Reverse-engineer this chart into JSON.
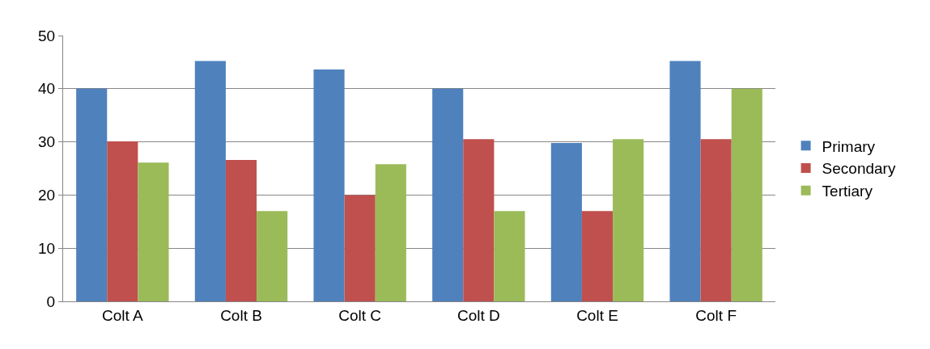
{
  "chart_data": {
    "type": "bar",
    "categories": [
      "Colt A",
      "Colt B",
      "Colt C",
      "Colt D",
      "Colt E",
      "Colt F"
    ],
    "series": [
      {
        "name": "Primary",
        "color": "#4f81bd",
        "values": [
          40,
          45.2,
          43.6,
          40,
          29.8,
          45.2
        ]
      },
      {
        "name": "Secondary",
        "color": "#c0504d",
        "values": [
          30.1,
          26.6,
          20,
          30.5,
          17,
          30.5
        ]
      },
      {
        "name": "Tertiary",
        "color": "#9bbb59",
        "values": [
          26.1,
          17,
          25.8,
          17,
          30.5,
          40
        ]
      }
    ],
    "ylim": [
      0,
      50
    ],
    "yticks": [
      0,
      10,
      20,
      30,
      40,
      50
    ],
    "grid": "y",
    "legend": "right"
  }
}
